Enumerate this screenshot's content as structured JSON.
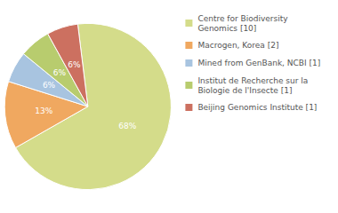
{
  "chart_data": {
    "type": "pie",
    "categories": [
      "Centre for Biodiversity\nGenomics [10]",
      "Macrogen, Korea [2]",
      "Mined from GenBank, NCBI [1]",
      "Institut de Recherche sur la\nBiologie de l'Insecte [1]",
      "Beijing Genomics Institute [1]"
    ],
    "values": [
      68,
      13,
      6,
      6,
      6
    ],
    "value_labels": [
      "68%",
      "13%",
      "6%",
      "6%",
      "6%"
    ],
    "colors": [
      "#d4dc8a",
      "#f0a860",
      "#a8c4e0",
      "#b8cc6e",
      "#cc7060"
    ],
    "data_labels": true,
    "legend": "right"
  }
}
